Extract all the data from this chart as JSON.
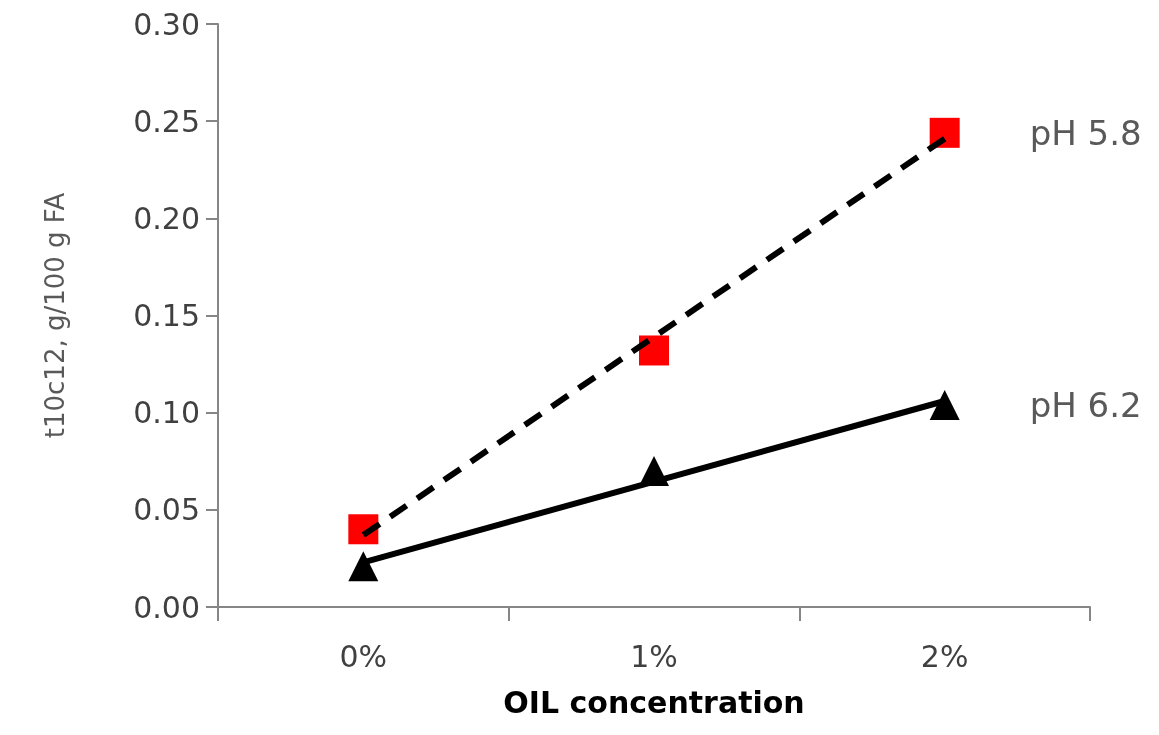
{
  "chart_data": {
    "type": "scatter",
    "xlabel": "OIL concentration",
    "ylabel": "t10c12, g/100 g FA",
    "categories": [
      "0%",
      "1%",
      "2%"
    ],
    "series": [
      {
        "name": "pH 5.8",
        "color": "#ff0000",
        "marker": "square",
        "values": [
          0.04,
          0.132,
          0.244
        ]
      },
      {
        "name": "pH 6.2",
        "color": "#000000",
        "marker": "triangle",
        "values": [
          0.021,
          0.07,
          0.104
        ]
      },
      {
        "type": "line",
        "color": "#000000",
        "line_style": "dashed",
        "marker": "none",
        "x": [
          "0%",
          "2%"
        ],
        "values": [
          0.037,
          0.241
        ]
      },
      {
        "type": "line",
        "color": "#000000",
        "line_style": "solid",
        "marker": "none",
        "x": [
          "0%",
          "2%"
        ],
        "values": [
          0.023,
          0.106
        ]
      }
    ],
    "ylim": [
      0,
      0.3
    ],
    "yticks": [
      {
        "value": 0,
        "label": "0.00"
      },
      {
        "value": 0.05,
        "label": "0.05"
      },
      {
        "value": 0.1,
        "label": "0.10"
      },
      {
        "value": 0.15,
        "label": "0.15"
      },
      {
        "value": 0.2,
        "label": "0.20"
      },
      {
        "value": 0.25,
        "label": "0.25"
      },
      {
        "value": 0.3,
        "label": "0.30"
      }
    ],
    "grid": false,
    "legend": false
  }
}
